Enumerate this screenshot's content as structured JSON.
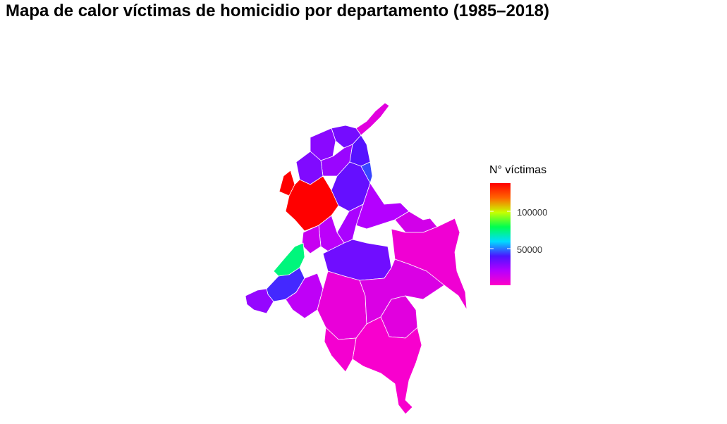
{
  "title": "Mapa de calor víctimas de homicidio por departamento (1985–2018)",
  "chart_data": {
    "type": "heatmap",
    "subtype": "choropleth map",
    "title": "Mapa de calor víctimas de homicidio por departamento (1985–2018)",
    "legend": {
      "title": "N° víctimas",
      "placement": "right",
      "range": [
        0,
        140000
      ],
      "ticks": [
        50000,
        100000
      ],
      "tick_labels": [
        "50000",
        "100000"
      ],
      "colors": [
        "#ff00c8",
        "#b400ff",
        "#4b14ff",
        "#00dcff",
        "#00ff50",
        "#c8ff00",
        "#ff6400",
        "#ff0000"
      ]
    },
    "regions": [
      {
        "id": "r01",
        "value": 8000
      },
      {
        "id": "r02",
        "value": 32000
      },
      {
        "id": "r03",
        "value": 28000
      },
      {
        "id": "r04",
        "value": 25000
      },
      {
        "id": "r05",
        "value": 38000
      },
      {
        "id": "r06",
        "value": 30000
      },
      {
        "id": "r07",
        "value": 140000
      },
      {
        "id": "r08",
        "value": 140000
      },
      {
        "id": "r09",
        "value": 35000
      },
      {
        "id": "r10",
        "value": 45000
      },
      {
        "id": "r11",
        "value": 20000
      },
      {
        "id": "r12",
        "value": 12000
      },
      {
        "id": "r13",
        "value": 22000
      },
      {
        "id": "r14",
        "value": 18000
      },
      {
        "id": "r15",
        "value": 15000
      },
      {
        "id": "r16",
        "value": 75000
      },
      {
        "id": "r17",
        "value": 42000
      },
      {
        "id": "r18",
        "value": 26000
      },
      {
        "id": "r19",
        "value": 17000
      },
      {
        "id": "r20",
        "value": 33000
      },
      {
        "id": "r21",
        "value": 6000
      },
      {
        "id": "r22",
        "value": 4000
      },
      {
        "id": "r23",
        "value": 10000
      },
      {
        "id": "r24",
        "value": 8000
      },
      {
        "id": "r25",
        "value": 2000
      },
      {
        "id": "r26",
        "value": 3000
      }
    ],
    "grid": false
  }
}
